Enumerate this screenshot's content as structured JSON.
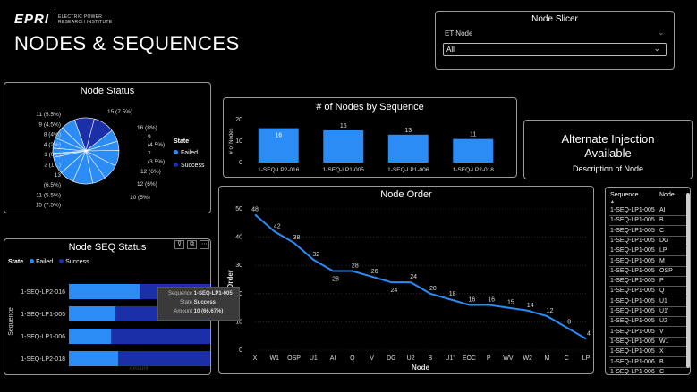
{
  "header": {
    "logo_letters": "EPRI",
    "logo_line1": "ELECTRIC POWER",
    "logo_line2": "RESEARCH INSTITUTE",
    "title": "NODES & SEQUENCES"
  },
  "slicer": {
    "title": "Node Slicer",
    "field_label": "ET Node",
    "value": "All"
  },
  "node_status": {
    "title": "Node Status",
    "legend_title": "State",
    "legend": [
      {
        "label": "Failed",
        "color": "#2b8cf5"
      },
      {
        "label": "Success",
        "color": "#1a2fa8"
      }
    ],
    "labels_left": [
      "11 (5.5%)",
      "9 (4.5%)",
      "8 (4%)",
      "4 (2%)",
      "1 (0...)",
      "2 (1...)",
      "13",
      "(6.5%)",
      "11 (5.5%)",
      "15 (7.5%)"
    ],
    "labels_right": [
      "15 (7.5%)",
      "16 (8%)",
      "9",
      "(4.5%)",
      "7",
      "(3.5%)",
      "12 (6%)",
      "12 (6%)",
      "10 (5%)"
    ]
  },
  "nodes_by_sequence": {
    "title": "# of Nodes by Sequence",
    "ylabel": "# of Nodes",
    "yticks": [
      "0",
      "10",
      "20"
    ]
  },
  "alt_card": {
    "line1": "Alternate Injection",
    "line2": "Available",
    "subtitle": "Description of Node"
  },
  "node_order": {
    "title": "Node Order",
    "xlabel": "Node",
    "ylabel": "Order",
    "yticks": [
      "0",
      "10",
      "20",
      "30",
      "40",
      "50"
    ]
  },
  "node_seq_status": {
    "title": "Node SEQ Status",
    "legend_title": "State",
    "legend": [
      "Failed",
      "Success"
    ],
    "ylabel": "Sequence",
    "xlabel": "Amount",
    "rows": [
      {
        "label": "1-SEQ-LP2-016",
        "failed": 0.5,
        "success": 0.5
      },
      {
        "label": "1-SEQ-LP1-005",
        "failed": 0.33,
        "success": 0.67
      },
      {
        "label": "1-SEQ-LP1-006",
        "failed": 0.3,
        "success": 0.7
      },
      {
        "label": "1-SEQ-LP2-018",
        "failed": 0.35,
        "success": 0.65
      }
    ],
    "tooltip": {
      "k1": "Sequence",
      "v1": "1-SEQ-LP1-005",
      "k2": "State",
      "v2": "Success",
      "k3": "Amount",
      "v3": "10 (66.67%)"
    }
  },
  "table": {
    "headers": [
      "Sequence",
      "Node"
    ],
    "rows": [
      [
        "1-SEQ-LP1-005",
        "AI"
      ],
      [
        "1-SEQ-LP1-005",
        "B"
      ],
      [
        "1-SEQ-LP1-005",
        "C"
      ],
      [
        "1-SEQ-LP1-005",
        "DG"
      ],
      [
        "1-SEQ-LP1-005",
        "LP"
      ],
      [
        "1-SEQ-LP1-005",
        "M"
      ],
      [
        "1-SEQ-LP1-005",
        "OSP"
      ],
      [
        "1-SEQ-LP1-005",
        "P"
      ],
      [
        "1-SEQ-LP1-005",
        "Q"
      ],
      [
        "1-SEQ-LP1-005",
        "U1"
      ],
      [
        "1-SEQ-LP1-005",
        "U1'"
      ],
      [
        "1-SEQ-LP1-005",
        "U2"
      ],
      [
        "1-SEQ-LP1-005",
        "V"
      ],
      [
        "1-SEQ-LP1-005",
        "W1"
      ],
      [
        "1-SEQ-LP1-005",
        "X"
      ],
      [
        "1-SEQ-LP1-006",
        "B"
      ],
      [
        "1-SEQ-LP1-006",
        "C"
      ]
    ]
  },
  "chart_data": [
    {
      "type": "pie",
      "title": "Node Status",
      "slices": [
        15,
        16,
        9,
        7,
        12,
        12,
        10,
        15,
        11,
        13,
        2,
        1,
        4,
        8,
        9,
        11
      ],
      "series": [
        {
          "name": "Failed"
        },
        {
          "name": "Success"
        }
      ]
    },
    {
      "type": "bar",
      "title": "# of Nodes by Sequence",
      "ylabel": "# of Nodes",
      "categories": [
        "1-SEQ-LP2-016",
        "1-SEQ-LP1-005",
        "1-SEQ-LP1-006",
        "1-SEQ-LP2-018"
      ],
      "values": [
        16,
        15,
        13,
        11
      ],
      "ylim": [
        0,
        20
      ],
      "color": "#2b8cf5"
    },
    {
      "type": "line",
      "title": "Node Order",
      "xlabel": "Node",
      "ylabel": "Order",
      "categories": [
        "X",
        "W1",
        "OSP",
        "U1",
        "AI",
        "Q",
        "V",
        "DG",
        "U2",
        "B",
        "U1'",
        "EOC",
        "P",
        "WV",
        "W2",
        "M",
        "C",
        "LP"
      ],
      "values": [
        48,
        42,
        38,
        32,
        28,
        28,
        26,
        24,
        24,
        20,
        18,
        16,
        16,
        15,
        14,
        12,
        8,
        4
      ],
      "ylim": [
        0,
        50
      ],
      "color": "#2b8cf5"
    }
  ]
}
